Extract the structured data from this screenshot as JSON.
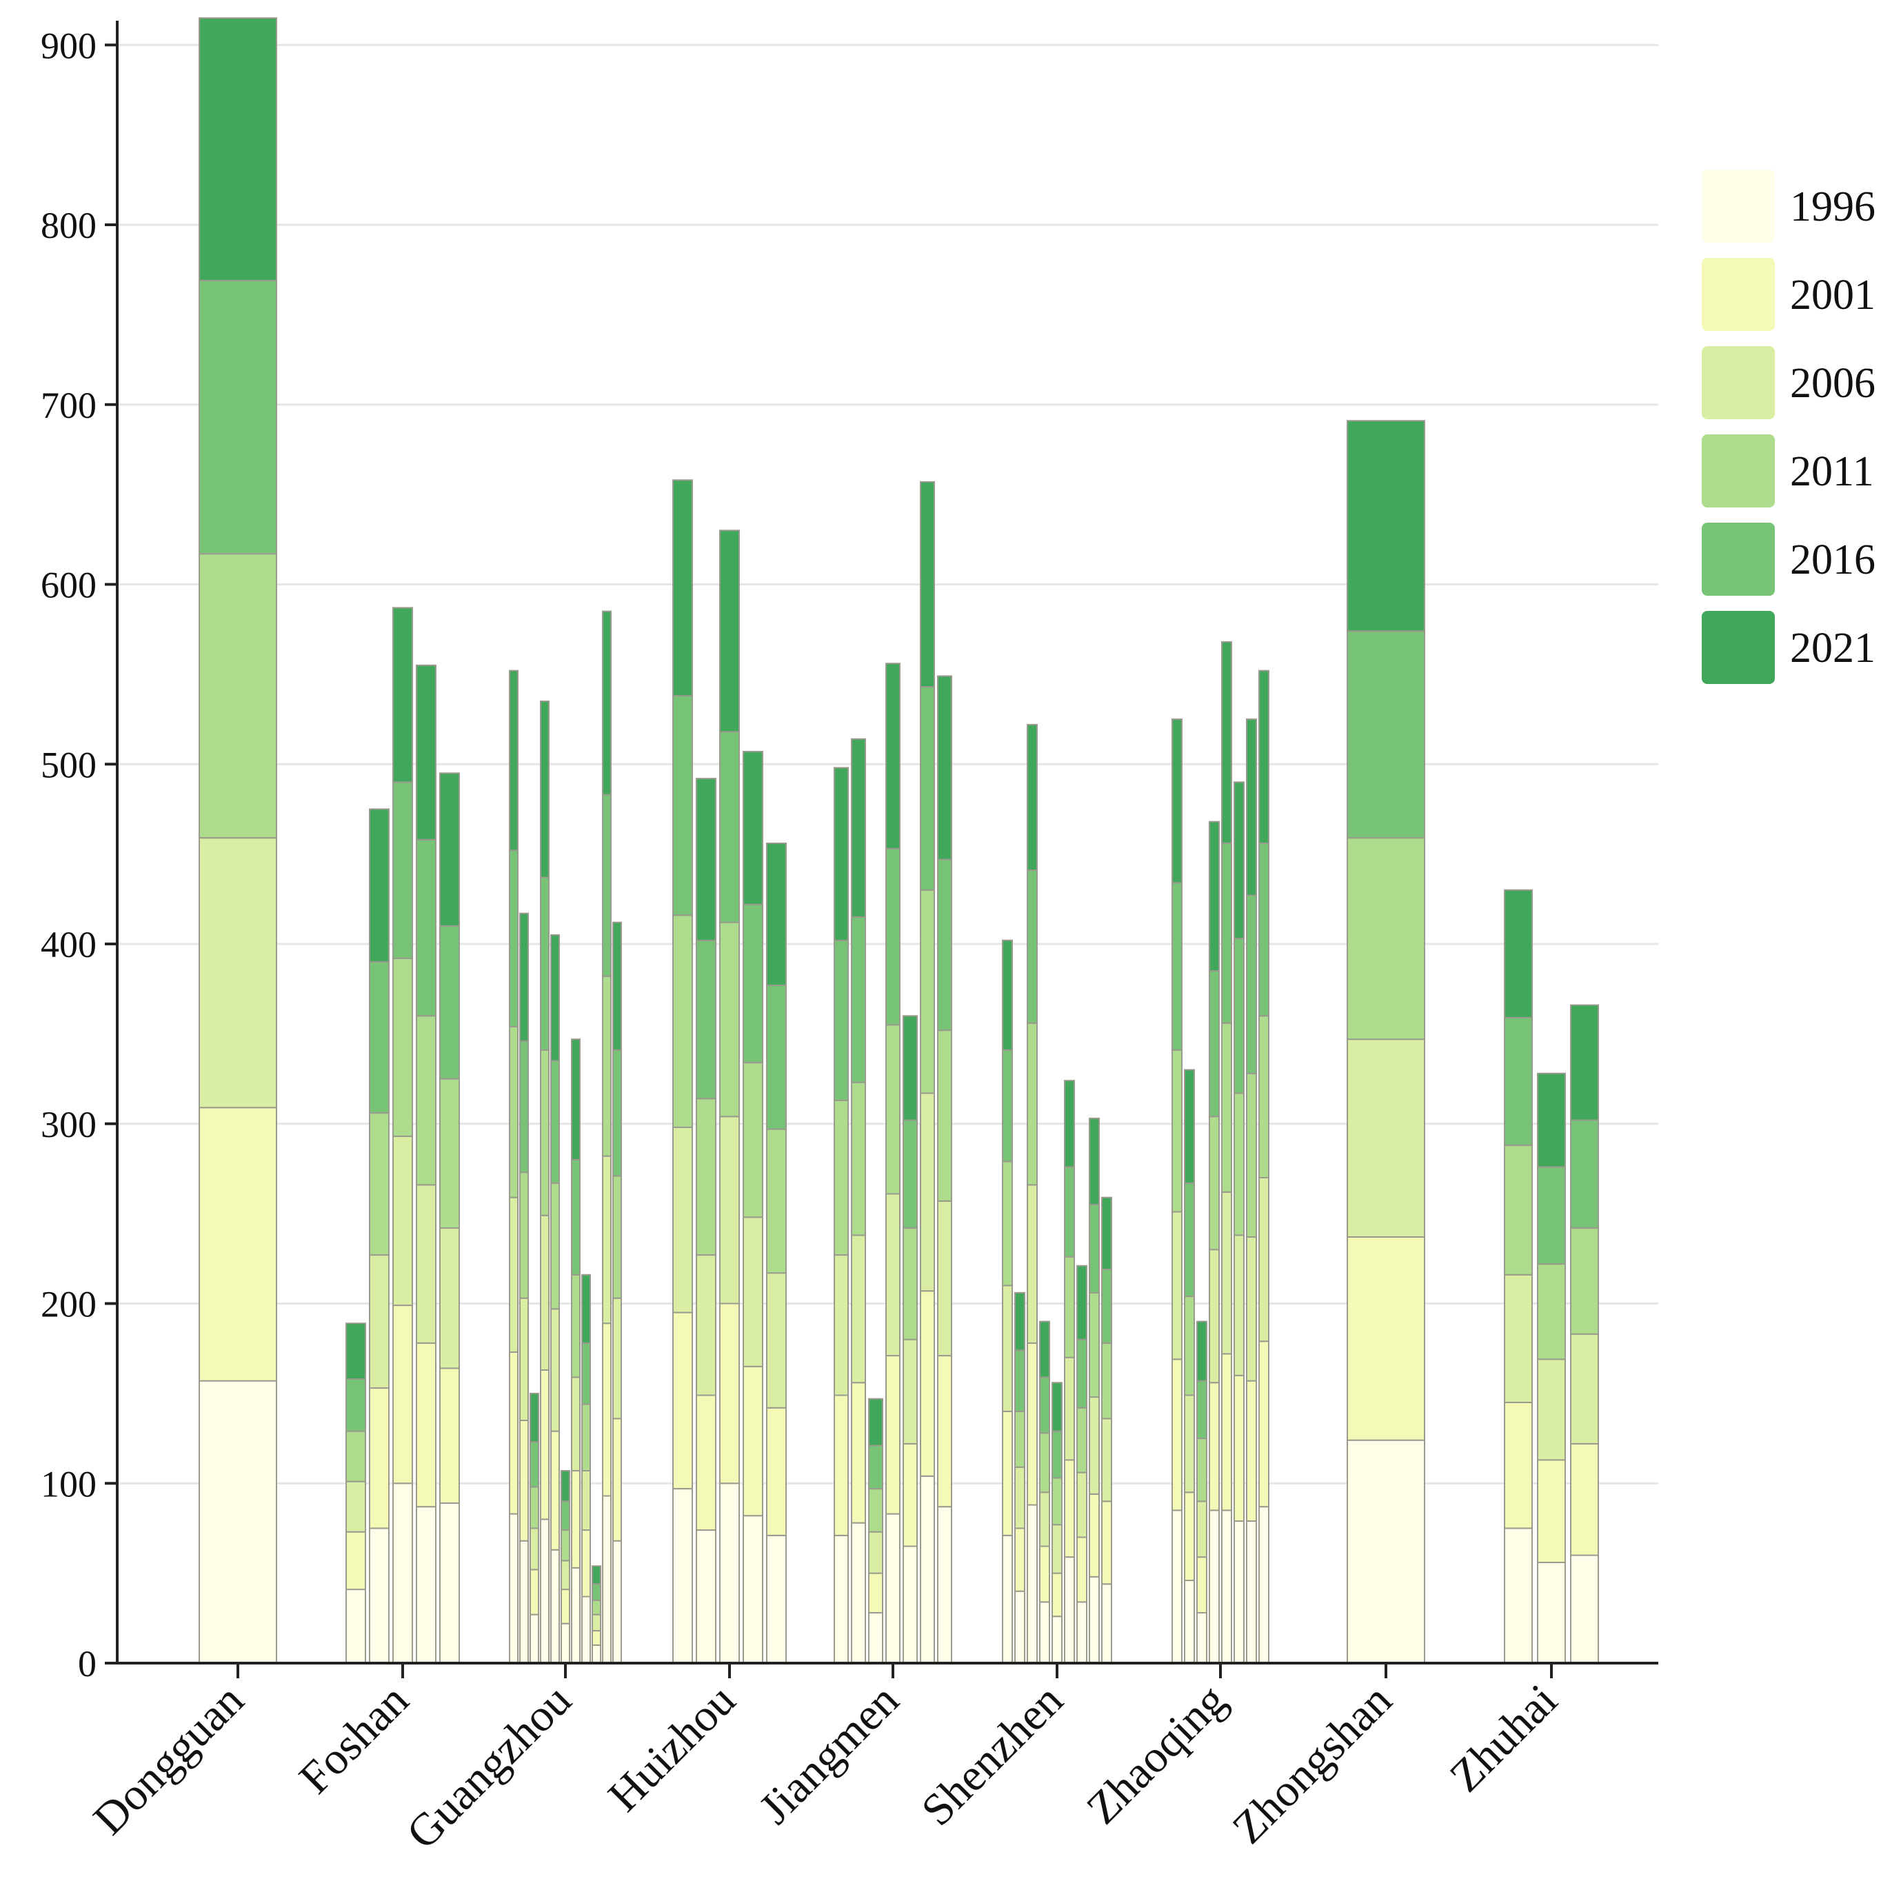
{
  "colors": {
    "1996": "#fefee9",
    "2001": "#f5f9b6",
    "2006": "#d9eea2",
    "2011": "#acdc8c",
    "2016": "#78c477",
    "2021": "#41a85b",
    "grid": "#e6e6e6",
    "axis": "#222222",
    "bar_stroke": "#9a9a8e"
  },
  "chart_data": {
    "type": "bar",
    "stacked": true,
    "title": "",
    "xlabel": "",
    "ylabel": "",
    "ylim": [
      0,
      915
    ],
    "yticks": [
      0,
      100,
      200,
      300,
      400,
      500,
      600,
      700,
      800,
      900
    ],
    "grid": true,
    "legend_position": "right",
    "series_names": [
      "1996",
      "2001",
      "2006",
      "2011",
      "2016",
      "2021"
    ],
    "categories": [
      {
        "name": "Dongguan",
        "bars": [
          [
            157,
            152,
            150,
            158,
            152,
            146
          ]
        ]
      },
      {
        "name": "Foshan",
        "bars": [
          [
            41,
            32,
            28,
            28,
            29,
            31
          ],
          [
            75,
            78,
            74,
            79,
            84,
            85
          ],
          [
            100,
            99,
            94,
            99,
            98,
            97
          ],
          [
            87,
            91,
            88,
            94,
            98,
            97
          ],
          [
            89,
            75,
            78,
            83,
            85,
            85
          ]
        ]
      },
      {
        "name": "Guangzhou",
        "bars": [
          [
            83,
            90,
            86,
            95,
            98,
            100
          ],
          [
            68,
            67,
            68,
            70,
            73,
            71
          ],
          [
            27,
            25,
            23,
            23,
            25,
            27
          ],
          [
            80,
            83,
            86,
            92,
            96,
            98
          ],
          [
            63,
            66,
            68,
            70,
            68,
            70
          ],
          [
            22,
            19,
            16,
            17,
            16,
            17
          ],
          [
            53,
            54,
            52,
            57,
            64,
            67
          ],
          [
            37,
            37,
            33,
            37,
            34,
            38
          ],
          [
            10,
            8,
            9,
            8,
            9,
            10
          ],
          [
            93,
            96,
            93,
            100,
            101,
            102
          ],
          [
            68,
            68,
            67,
            68,
            70,
            71
          ]
        ]
      },
      {
        "name": "Huizhou",
        "bars": [
          [
            97,
            98,
            103,
            118,
            122,
            120
          ],
          [
            74,
            75,
            78,
            87,
            88,
            90
          ],
          [
            100,
            100,
            104,
            108,
            106,
            112
          ],
          [
            82,
            83,
            83,
            86,
            88,
            85
          ],
          [
            71,
            71,
            75,
            80,
            80,
            79
          ]
        ]
      },
      {
        "name": "Jiangmen",
        "bars": [
          [
            71,
            78,
            78,
            86,
            89,
            96
          ],
          [
            78,
            78,
            82,
            85,
            92,
            99
          ],
          [
            28,
            22,
            23,
            24,
            24,
            26
          ],
          [
            83,
            88,
            90,
            94,
            98,
            103
          ],
          [
            65,
            57,
            58,
            62,
            60,
            58
          ],
          [
            104,
            103,
            110,
            113,
            113,
            114
          ],
          [
            87,
            84,
            86,
            95,
            95,
            102
          ]
        ]
      },
      {
        "name": "Shenzhen",
        "bars": [
          [
            71,
            69,
            70,
            69,
            62,
            61
          ],
          [
            40,
            35,
            34,
            31,
            34,
            32
          ],
          [
            88,
            90,
            88,
            90,
            85,
            81
          ],
          [
            34,
            31,
            30,
            33,
            31,
            31
          ],
          [
            26,
            24,
            27,
            26,
            26,
            27
          ],
          [
            59,
            54,
            57,
            56,
            50,
            48
          ],
          [
            34,
            36,
            36,
            36,
            38,
            41
          ],
          [
            48,
            46,
            54,
            58,
            49,
            48
          ],
          [
            44,
            46,
            46,
            42,
            41,
            40
          ]
        ]
      },
      {
        "name": "Zhaoqing",
        "bars": [
          [
            85,
            84,
            82,
            90,
            93,
            91
          ],
          [
            46,
            49,
            54,
            55,
            63,
            63
          ],
          [
            28,
            31,
            31,
            35,
            32,
            33
          ],
          [
            85,
            71,
            74,
            74,
            81,
            83
          ],
          [
            85,
            87,
            90,
            94,
            100,
            112
          ],
          [
            79,
            81,
            78,
            79,
            86,
            87
          ],
          [
            79,
            78,
            80,
            91,
            99,
            98
          ],
          [
            87,
            92,
            91,
            90,
            96,
            96
          ]
        ]
      },
      {
        "name": "Zhongshan",
        "bars": [
          [
            124,
            113,
            110,
            112,
            115,
            117
          ]
        ]
      },
      {
        "name": "Zhuhai",
        "bars": [
          [
            75,
            70,
            71,
            72,
            71,
            71
          ],
          [
            56,
            57,
            56,
            53,
            54,
            52
          ],
          [
            60,
            62,
            61,
            59,
            60,
            64
          ]
        ]
      }
    ]
  }
}
